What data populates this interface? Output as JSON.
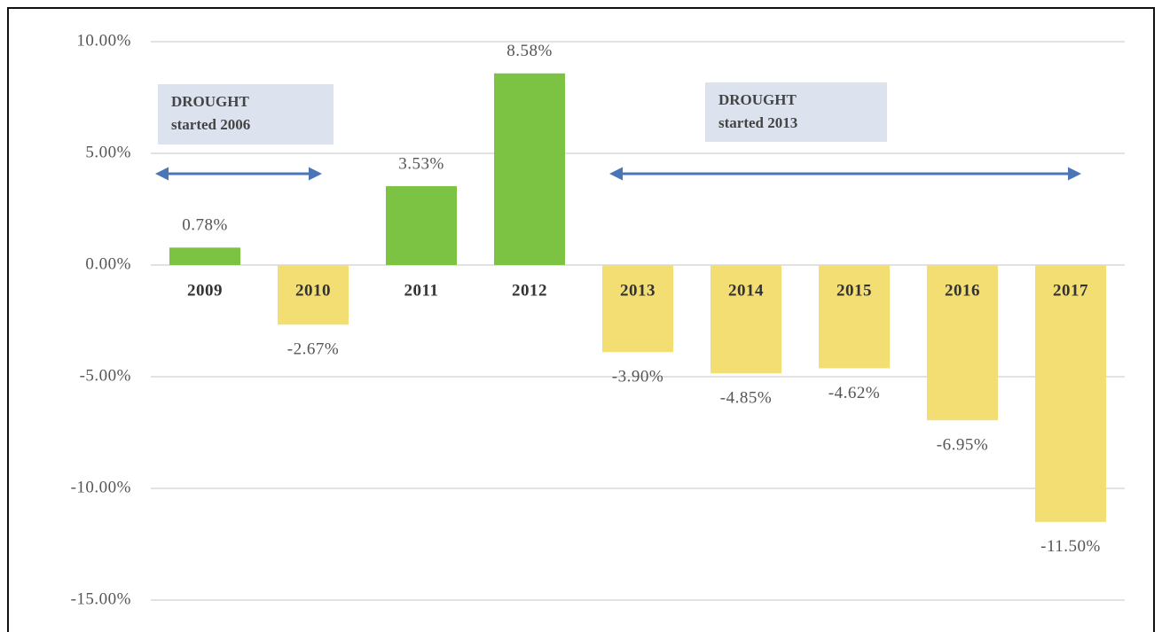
{
  "chart_data": {
    "type": "bar",
    "categories": [
      "2009",
      "2010",
      "2011",
      "2012",
      "2013",
      "2014",
      "2015",
      "2016",
      "2017"
    ],
    "values": [
      0.78,
      -2.67,
      3.53,
      8.58,
      -3.9,
      -4.85,
      -4.62,
      -6.95,
      -11.5
    ],
    "value_labels": [
      "0.78%",
      "-2.67%",
      "3.53%",
      "8.58%",
      "-3.90%",
      "-4.85%",
      "-4.62%",
      "-6.95%",
      "-11.50%"
    ],
    "colors": [
      "#7cc243",
      "#f2de72",
      "#7cc243",
      "#7cc243",
      "#f2de72",
      "#f2de72",
      "#f2de72",
      "#f2de72",
      "#f2de72"
    ],
    "ylim": [
      -15,
      10
    ],
    "yticks": [
      {
        "value": 10,
        "label": "10.00%"
      },
      {
        "value": 5,
        "label": "5.00%"
      },
      {
        "value": 0,
        "label": "0.00%"
      },
      {
        "value": -5,
        "label": "-5.00%"
      },
      {
        "value": -10,
        "label": "-10.00%"
      },
      {
        "value": -15,
        "label": "-15.00%"
      }
    ],
    "grid": true,
    "annotations": [
      {
        "lines": [
          "DROUGHT",
          "started 2006"
        ]
      },
      {
        "lines": [
          "DROUGHT",
          "started 2013"
        ]
      }
    ]
  }
}
